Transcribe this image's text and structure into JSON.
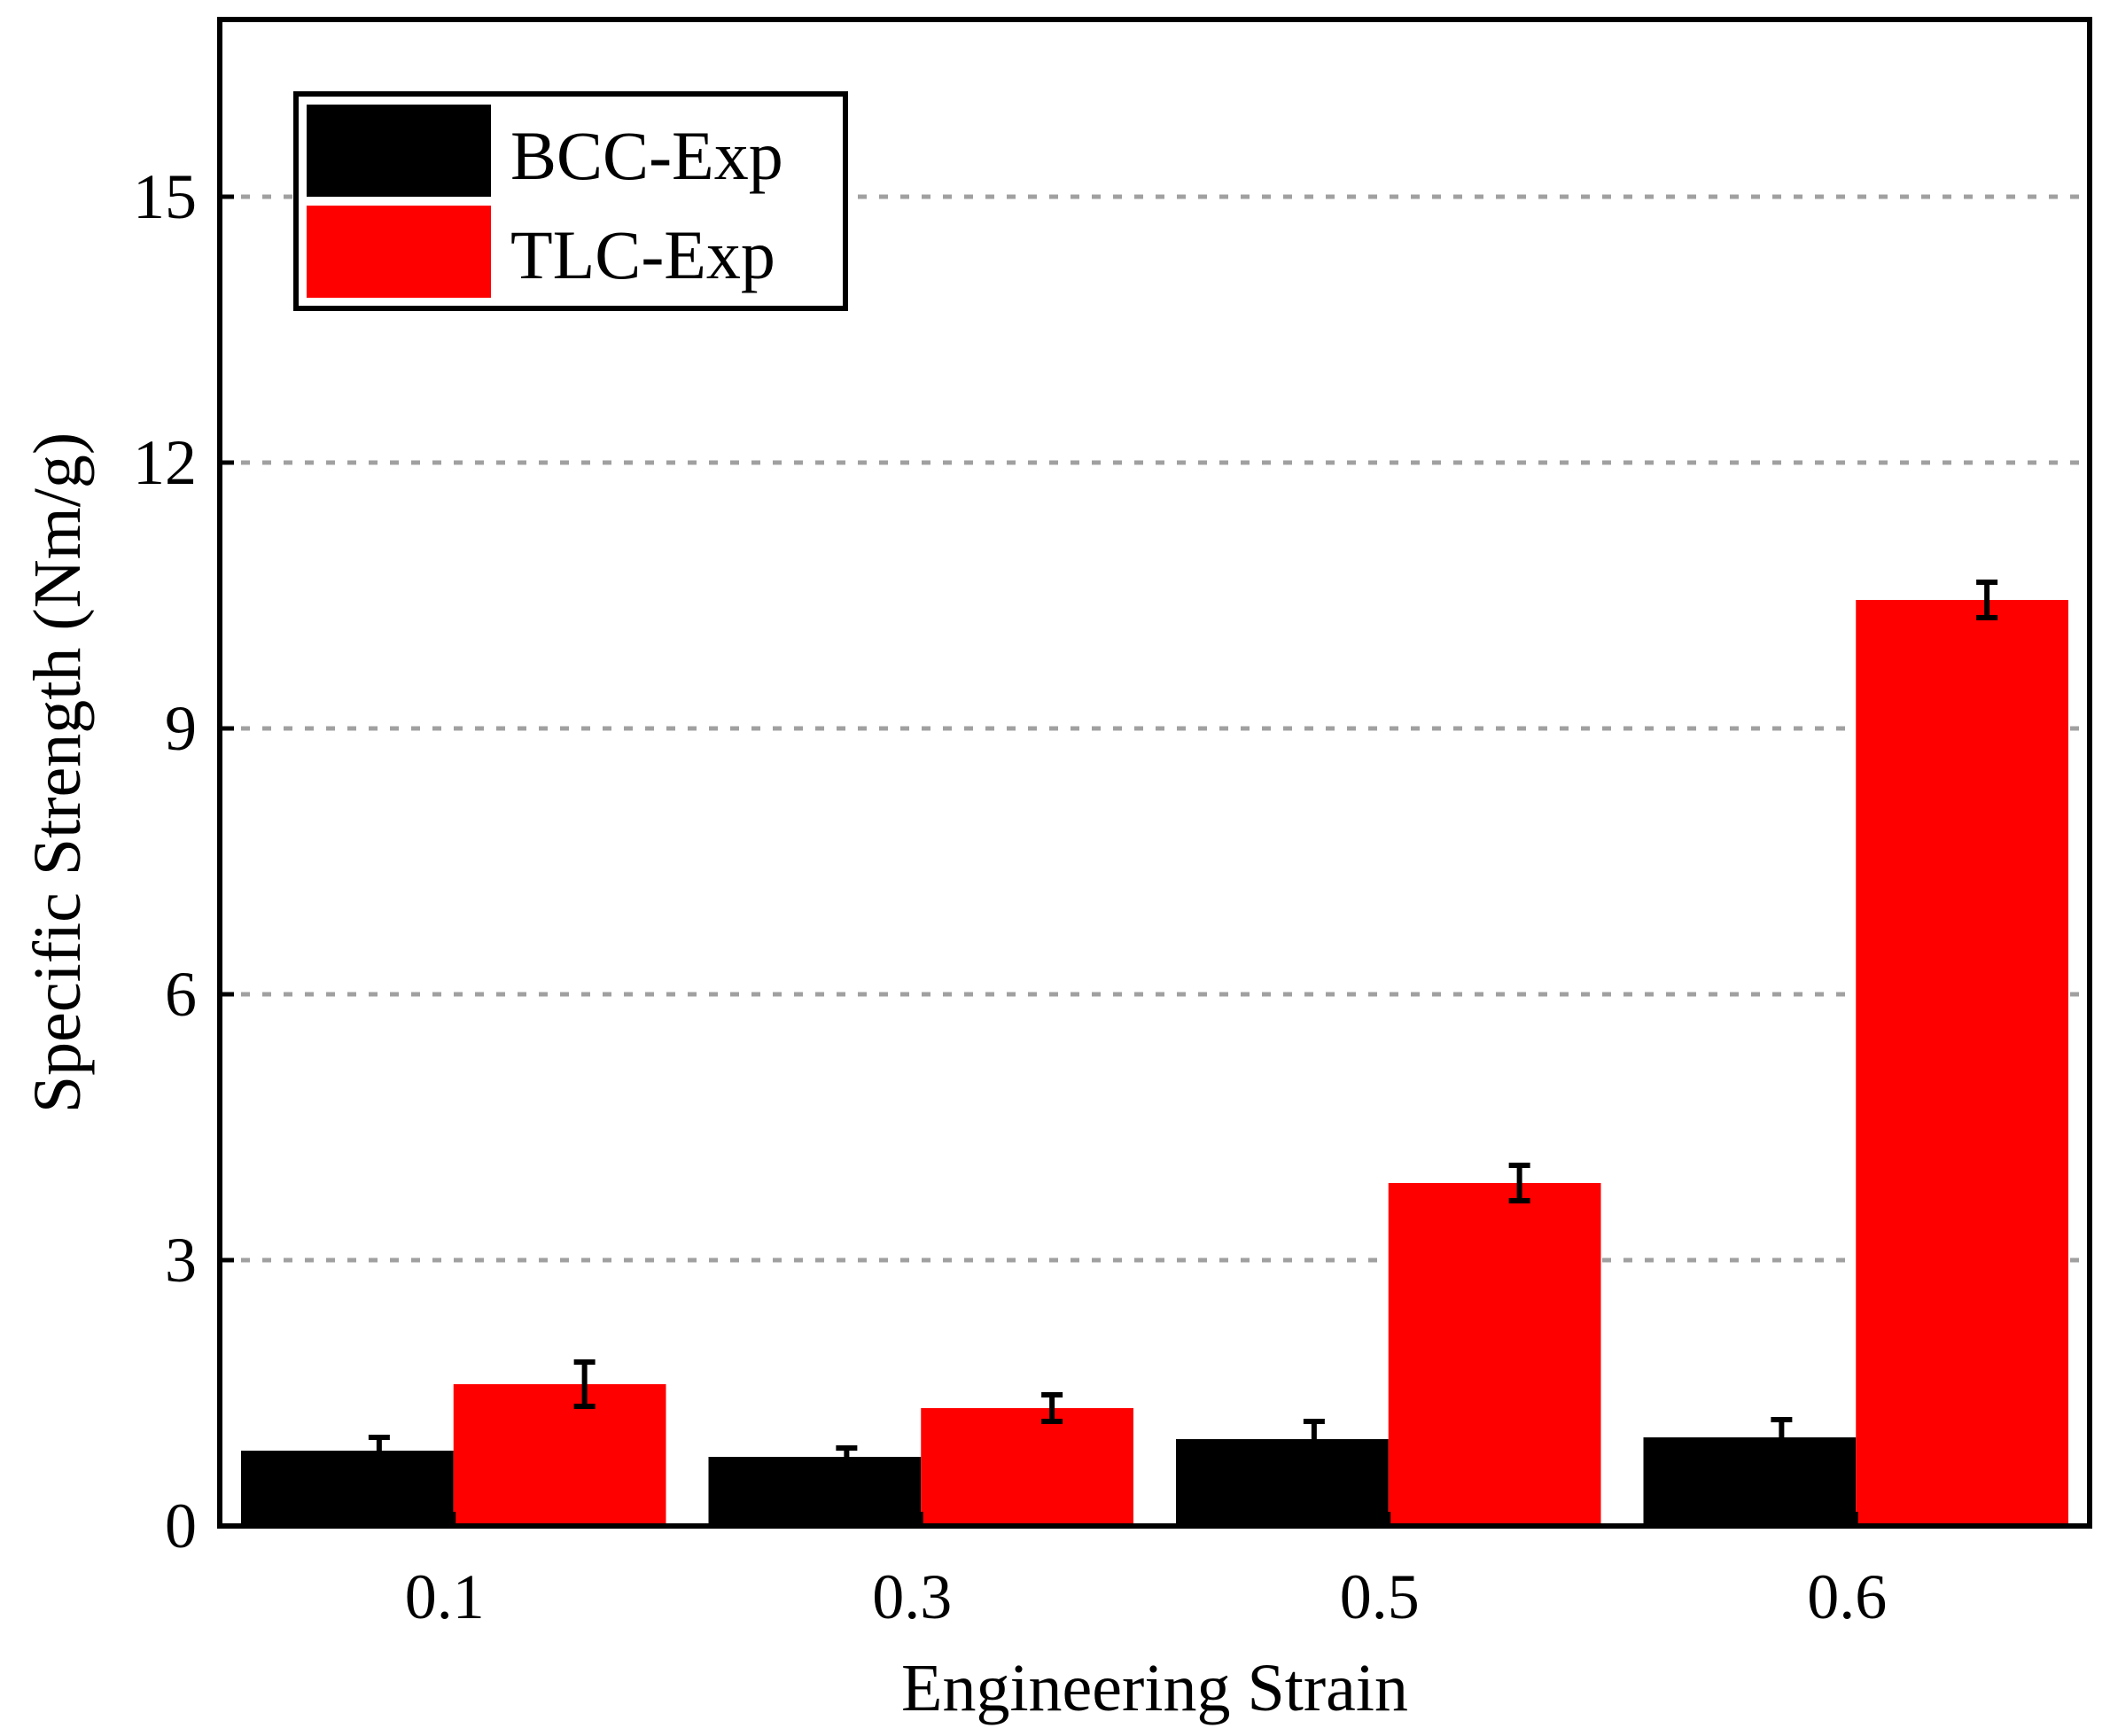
{
  "chart_data": {
    "type": "bar",
    "title": "",
    "xlabel": "Engineering Strain",
    "ylabel": "Specific Strength (Nm/g)",
    "categories": [
      "0.1",
      "0.3",
      "0.5",
      "0.6"
    ],
    "ylim": [
      0,
      17
    ],
    "yticks": [
      0,
      3,
      6,
      9,
      12,
      15
    ],
    "ytick_labels": [
      "0",
      "3",
      "6",
      "9",
      "12",
      "15"
    ],
    "grid": "horizontal dashed at y ticks",
    "legend_position": "top-left",
    "series": [
      {
        "name": "BCC-Exp",
        "color": "#000000",
        "values": [
          0.85,
          0.78,
          0.98,
          1.0
        ],
        "errors": [
          0.15,
          0.1,
          0.2,
          0.2
        ]
      },
      {
        "name": "TLC-Exp",
        "color": "#ff0000",
        "values": [
          1.6,
          1.33,
          3.87,
          10.45
        ],
        "errors": [
          0.25,
          0.15,
          0.2,
          0.2
        ]
      }
    ]
  }
}
